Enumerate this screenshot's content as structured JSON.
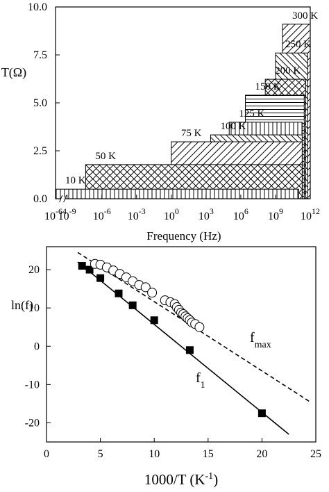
{
  "chart_data": [
    {
      "type": "bar-range",
      "ylabel": "T(Ω)",
      "xlabel": "Frequency  (Hz)",
      "xscale": "log",
      "xlim": [
        1e-64,
        1000000000000.0
      ],
      "xbreak": [
        1e-63,
        1e-09
      ],
      "xticks": [
        {
          "value": 1e-64,
          "label": "10-64"
        },
        {
          "value": 1e-09,
          "label": "10-9"
        },
        {
          "value": 1e-06,
          "label": "10-6"
        },
        {
          "value": 0.001,
          "label": "10-3"
        },
        {
          "value": 1,
          "label": "100"
        },
        {
          "value": 1000,
          "label": "103"
        },
        {
          "value": 1000000.0,
          "label": "106"
        },
        {
          "value": 1000000000.0,
          "label": "109"
        },
        {
          "value": 1000000000000.0,
          "label": "1012"
        }
      ],
      "ylim": [
        0,
        10
      ],
      "yticks": [
        {
          "value": 0,
          "label": "0.0"
        },
        {
          "value": 2.5,
          "label": "2.5"
        },
        {
          "value": 5,
          "label": "5.0"
        },
        {
          "value": 7.5,
          "label": "7.5"
        },
        {
          "value": 10,
          "label": "10.0"
        }
      ],
      "bars": [
        {
          "name": "10 K",
          "pattern": "vertical",
          "f1": 1e-64,
          "fmax": 100000000000.0,
          "value": 0.5
        },
        {
          "name": "50 K",
          "pattern": "cross",
          "f1": 4e-08,
          "fmax": 200000000000.0,
          "value": 1.78
        },
        {
          "name": "75 K",
          "pattern": "diag",
          "f1": 1,
          "fmax": 200000000000.0,
          "value": 2.97
        },
        {
          "name": "100 K",
          "pattern": "backdiag",
          "f1": 2500,
          "fmax": 200000000000.0,
          "value": 3.33
        },
        {
          "name": "125 K",
          "pattern": "vertical",
          "f1": 100000.0,
          "fmax": 200000000000.0,
          "value": 3.99
        },
        {
          "name": "150 K",
          "pattern": "horizontal",
          "f1": 2500000.0,
          "fmax": 300000000000.0,
          "value": 5.4
        },
        {
          "name": "200 K",
          "pattern": "cross",
          "f1": 130000000.0,
          "fmax": 400000000000.0,
          "value": 6.23
        },
        {
          "name": "250 K",
          "pattern": "backdiag",
          "f1": 1000000000.0,
          "fmax": 600000000000.0,
          "value": 7.6
        },
        {
          "name": "300 K",
          "pattern": "diag",
          "f1": 4000000000.0,
          "fmax": 1000000000000.0,
          "value": 9.1
        }
      ]
    },
    {
      "type": "scatter",
      "ylabel": "ln(f)",
      "xlabel": {
        "text": "1000/T  (K",
        "sup": "-1",
        "tail": ")"
      },
      "xlim": [
        0,
        25
      ],
      "xticks": [
        0,
        5,
        10,
        15,
        20,
        25
      ],
      "ylim": [
        -25,
        26
      ],
      "yticks": [
        -20,
        -10,
        0,
        10,
        20
      ],
      "series": [
        {
          "marker": "line",
          "style": "solid",
          "x": [
            2.9,
            22.5
          ],
          "y": [
            22,
            -23
          ]
        },
        {
          "marker": "line",
          "style": "dashed",
          "x": [
            2.9,
            24.4
          ],
          "y": [
            24.5,
            -14.4
          ]
        },
        {
          "marker": "square",
          "x": [
            3.3,
            4,
            5,
            6.7,
            8,
            10,
            13.3,
            20
          ],
          "y": [
            21,
            20,
            17.8,
            13.8,
            10.7,
            6.8,
            -1,
            -17.5
          ]
        },
        {
          "marker": "circle",
          "x": [
            4.5,
            5,
            5.6,
            6.2,
            6.8,
            7.4,
            8,
            8.6,
            9.2,
            9.8,
            11,
            11.5,
            11.9,
            12.1,
            12.3,
            12.5,
            12.7,
            12.9,
            13.1,
            13.3,
            13.5,
            13.8,
            14.2
          ],
          "y": [
            21.5,
            21.3,
            20.6,
            19.8,
            18.9,
            18,
            17,
            16,
            15.4,
            14,
            12,
            11.5,
            11,
            10.2,
            9.5,
            8.8,
            8.4,
            7.8,
            7.3,
            6.8,
            6.2,
            5.8,
            5
          ]
        }
      ],
      "annotations": [
        {
          "text": "f",
          "sub": "max"
        },
        {
          "text": "f",
          "sub": "1"
        }
      ]
    }
  ]
}
